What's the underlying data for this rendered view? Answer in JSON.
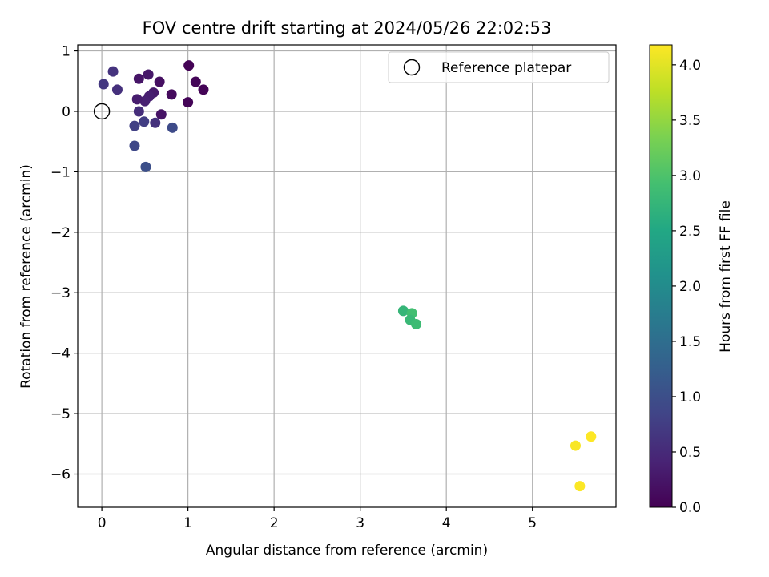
{
  "chart_data": {
    "type": "scatter",
    "title": "FOV centre drift starting at 2024/05/26 22:02:53",
    "xlabel": "Angular distance from reference (arcmin)",
    "ylabel": "Rotation from reference (arcmin)",
    "xlim": [
      -0.28,
      5.97
    ],
    "ylim": [
      -6.55,
      1.1
    ],
    "xticks": [
      0,
      1,
      2,
      3,
      4,
      5
    ],
    "yticks": [
      1,
      0,
      -1,
      -2,
      -3,
      -4,
      -5,
      -6
    ],
    "xtick_labels": [
      "0",
      "1",
      "2",
      "3",
      "4",
      "5"
    ],
    "ytick_labels": [
      "1",
      "0",
      "−1",
      "−2",
      "−3",
      "−4",
      "−5",
      "−6"
    ],
    "grid": true,
    "legend": {
      "location": "top-right",
      "entries": [
        "Reference platepar"
      ]
    },
    "reference_point": {
      "x": 0,
      "y": 0
    },
    "colorbar": {
      "label": "Hours from first FF file",
      "colormap": "viridis",
      "range": [
        0.0,
        4.18
      ],
      "ticks": [
        0.0,
        0.5,
        1.0,
        1.5,
        2.0,
        2.5,
        3.0,
        3.5,
        4.0
      ],
      "tick_labels": [
        "0.0",
        "0.5",
        "1.0",
        "1.5",
        "2.0",
        "2.5",
        "3.0",
        "3.5",
        "4.0"
      ]
    },
    "series": [
      {
        "points": [
          {
            "x": 1.01,
            "y": 0.76,
            "c": 0.02
          },
          {
            "x": 1.09,
            "y": 0.49,
            "c": 0.05
          },
          {
            "x": 1.18,
            "y": 0.36,
            "c": 0.03
          },
          {
            "x": 1.0,
            "y": 0.15,
            "c": 0.04
          },
          {
            "x": 0.81,
            "y": 0.28,
            "c": 0.12
          },
          {
            "x": 0.67,
            "y": 0.49,
            "c": 0.18
          },
          {
            "x": 0.54,
            "y": 0.61,
            "c": 0.28
          },
          {
            "x": 0.43,
            "y": 0.54,
            "c": 0.24
          },
          {
            "x": 0.6,
            "y": 0.31,
            "c": 0.3
          },
          {
            "x": 0.55,
            "y": 0.25,
            "c": 0.35
          },
          {
            "x": 0.5,
            "y": 0.17,
            "c": 0.38
          },
          {
            "x": 0.41,
            "y": 0.2,
            "c": 0.33
          },
          {
            "x": 0.69,
            "y": -0.05,
            "c": 0.22
          },
          {
            "x": 0.43,
            "y": 0.0,
            "c": 0.55
          },
          {
            "x": 0.62,
            "y": -0.19,
            "c": 0.6
          },
          {
            "x": 0.49,
            "y": -0.17,
            "c": 0.75
          },
          {
            "x": 0.38,
            "y": -0.24,
            "c": 0.8
          },
          {
            "x": 0.82,
            "y": -0.27,
            "c": 0.95
          },
          {
            "x": 0.13,
            "y": 0.66,
            "c": 0.62
          },
          {
            "x": 0.02,
            "y": 0.45,
            "c": 0.68
          },
          {
            "x": 0.18,
            "y": 0.36,
            "c": 0.58
          },
          {
            "x": 0.38,
            "y": -0.57,
            "c": 0.9
          },
          {
            "x": 0.51,
            "y": -0.92,
            "c": 1.0
          },
          {
            "x": 3.5,
            "y": -3.3,
            "c": 2.75
          },
          {
            "x": 3.6,
            "y": -3.34,
            "c": 2.9
          },
          {
            "x": 3.58,
            "y": -3.45,
            "c": 2.8
          },
          {
            "x": 3.65,
            "y": -3.52,
            "c": 2.85
          },
          {
            "x": 5.5,
            "y": -5.53,
            "c": 4.15
          },
          {
            "x": 5.68,
            "y": -5.38,
            "c": 4.18
          },
          {
            "x": 5.55,
            "y": -6.2,
            "c": 4.17
          }
        ]
      }
    ]
  }
}
